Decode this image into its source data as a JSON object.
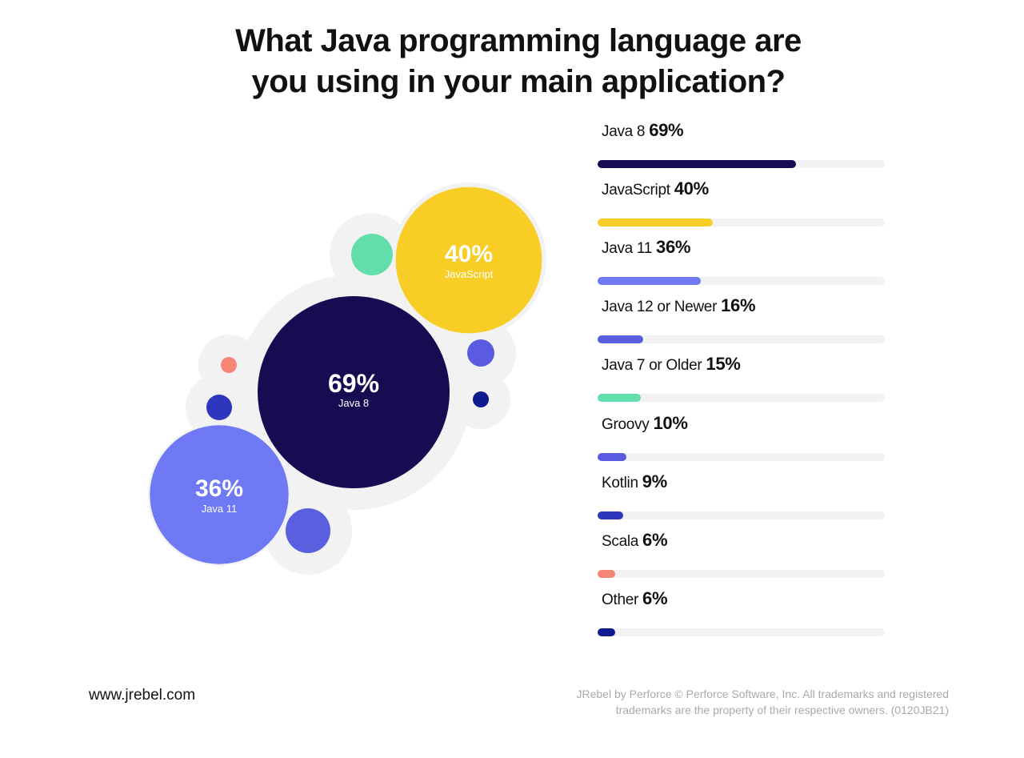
{
  "title": {
    "line1": "What Java programming language are",
    "line2": "you using in your main application?"
  },
  "chart_data": {
    "type": "bar",
    "categories": [
      "Java 8",
      "JavaScript",
      "Java 11",
      "Java 12 or Newer",
      "Java 7 or Older",
      "Groovy",
      "Kotlin",
      "Scala",
      "Other"
    ],
    "values": [
      69,
      40,
      36,
      16,
      15,
      10,
      9,
      6,
      6
    ],
    "value_labels": [
      "69%",
      "40%",
      "36%",
      "16%",
      "15%",
      "10%",
      "9%",
      "6%",
      "6%"
    ],
    "colors": [
      "#170c52",
      "#f8cd25",
      "#6f79f4",
      "#5a5fe0",
      "#62deab",
      "#5a5be0",
      "#2e36be",
      "#f58677",
      "#0f1a8f"
    ],
    "track_color": "#f2f2f2",
    "ylim": [
      0,
      100
    ]
  },
  "bubbles": {
    "labeled": [
      {
        "pct": "69%",
        "name": "Java 8"
      },
      {
        "pct": "40%",
        "name": "JavaScript"
      },
      {
        "pct": "36%",
        "name": "Java 11"
      }
    ]
  },
  "footer": {
    "website": "www.jrebel.com",
    "copyright_line1": "JRebel by Perforce © Perforce Software, Inc. All trademarks and registered",
    "copyright_line2": "trademarks are the property of their respective owners. (0120JB21)"
  }
}
